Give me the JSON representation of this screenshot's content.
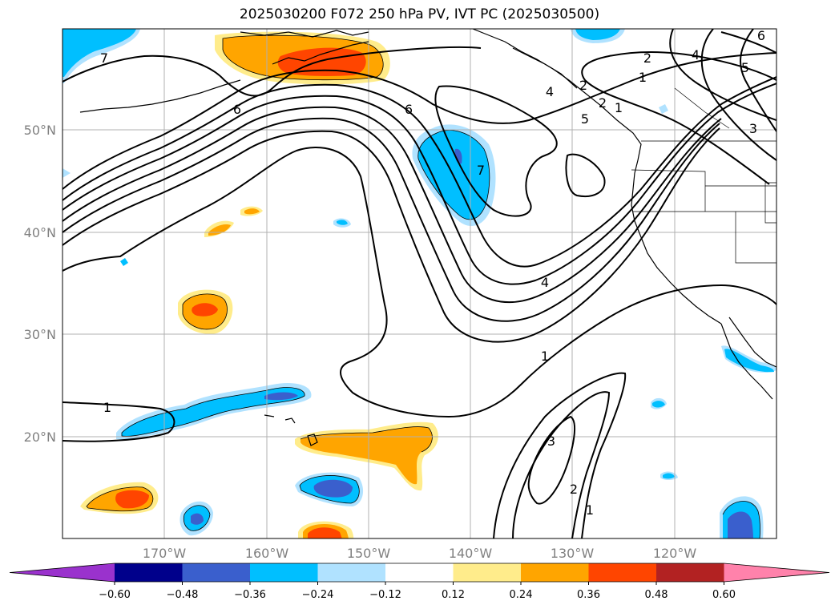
{
  "title": "2025030200 F072 250 hPa PV, IVT PC (2025030500)",
  "latitude_labels": [
    "50°N",
    "40°N",
    "30°N",
    "20°N"
  ],
  "longitude_labels": [
    "170°W",
    "160°W",
    "150°W",
    "140°W",
    "130°W",
    "120°W"
  ],
  "contour_labels": [
    "7",
    "6",
    "6",
    "7",
    "2",
    "4",
    "5",
    "2",
    "1",
    "5",
    "3",
    "2",
    "1",
    "4",
    "1",
    "1",
    "3",
    "2",
    "1",
    "5",
    "6"
  ],
  "colorbar": {
    "tick_labels": [
      "−0.60",
      "−0.48",
      "−0.36",
      "−0.24",
      "−0.12",
      "0.12",
      "0.24",
      "0.36",
      "0.48",
      "0.60"
    ],
    "colors": [
      "#9a32cd",
      "#00008b",
      "#3a5fcd",
      "#00bfff",
      "#b0e2ff",
      "#ffffff",
      "#ffec8b",
      "#ffa500",
      "#ff4500",
      "#b22222",
      "#ff82ab"
    ]
  },
  "shading_colors": {
    "light_blue": "#b0e2ff",
    "cyan": "#00bfff",
    "blue": "#3a5fcd",
    "purple": "#9a32cd",
    "light_yellow": "#ffec8b",
    "orange": "#ffa500",
    "red_orange": "#ff4500"
  }
}
